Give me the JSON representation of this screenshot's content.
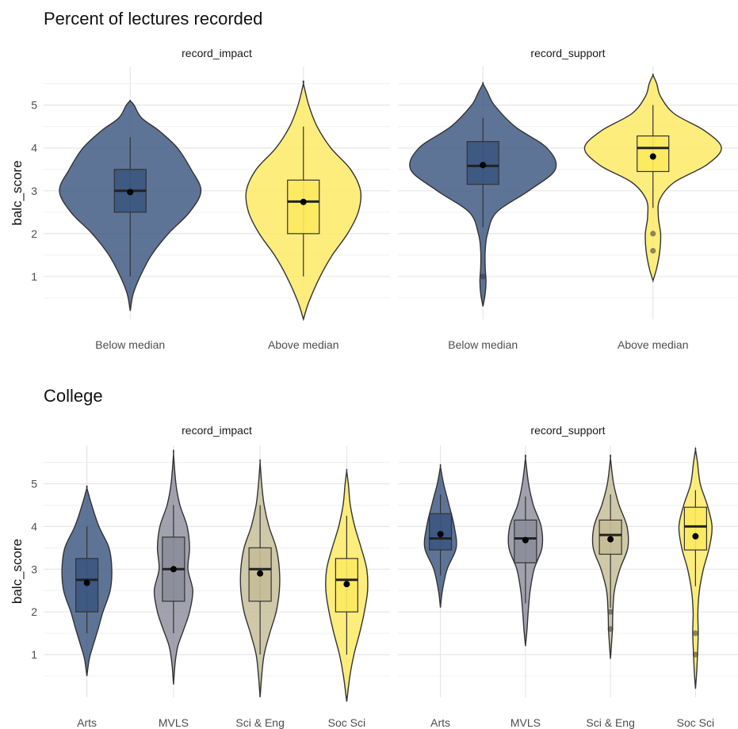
{
  "chart_data": [
    {
      "type": "violin",
      "title": "Percent of lectures recorded",
      "ylabel": "balc_score",
      "xlabel": "",
      "ylim": [
        0.0,
        5.9
      ],
      "yticks": [
        1,
        2,
        3,
        4,
        5
      ],
      "grid": true,
      "legend": "none",
      "colors": [
        "#3b5680",
        "#fde960"
      ],
      "panels": [
        {
          "strip": "record_impact",
          "groups": [
            {
              "name": "Below median",
              "violin": [
                [
                  0.2,
                  0
                ],
                [
                  0.6,
                  4
                ],
                [
                  1.0,
                  13
                ],
                [
                  1.5,
                  28
                ],
                [
                  2.0,
                  50
                ],
                [
                  2.5,
                  78
                ],
                [
                  3.0,
                  93
                ],
                [
                  3.5,
                  80
                ],
                [
                  4.0,
                  62
                ],
                [
                  4.4,
                  38
                ],
                [
                  4.7,
                  15
                ],
                [
                  5.0,
                  5
                ],
                [
                  5.1,
                  0
                ]
              ],
              "box": {
                "q1": 2.5,
                "median": 3.0,
                "q3": 3.5,
                "lower": 1.0,
                "upper": 4.25
              },
              "mean": 2.97,
              "outliers": []
            },
            {
              "name": "Above median",
              "violin": [
                [
                  0.0,
                  0
                ],
                [
                  0.4,
                  7
                ],
                [
                  1.0,
                  22
                ],
                [
                  1.5,
                  38
                ],
                [
                  2.0,
                  58
                ],
                [
                  2.5,
                  72
                ],
                [
                  3.0,
                  75
                ],
                [
                  3.5,
                  62
                ],
                [
                  4.0,
                  36
                ],
                [
                  4.5,
                  18
                ],
                [
                  5.0,
                  7
                ],
                [
                  5.5,
                  0
                ]
              ],
              "box": {
                "q1": 2.0,
                "median": 2.75,
                "q3": 3.25,
                "lower": 1.0,
                "upper": 4.5
              },
              "mean": 2.74,
              "outliers": []
            }
          ]
        },
        {
          "strip": "record_support",
          "groups": [
            {
              "name": "Below median",
              "violin": [
                [
                  0.3,
                  0
                ],
                [
                  0.6,
                  3
                ],
                [
                  0.9,
                  4
                ],
                [
                  1.2,
                  3
                ],
                [
                  1.6,
                  3
                ],
                [
                  2.0,
                  6
                ],
                [
                  2.5,
                  18
                ],
                [
                  3.0,
                  60
                ],
                [
                  3.5,
                  95
                ],
                [
                  4.0,
                  84
                ],
                [
                  4.5,
                  42
                ],
                [
                  5.0,
                  15
                ],
                [
                  5.3,
                  6
                ],
                [
                  5.5,
                  0
                ]
              ],
              "box": {
                "q1": 3.15,
                "median": 3.58,
                "q3": 4.15,
                "lower": 2.15,
                "upper": 4.7
              },
              "mean": 3.6,
              "outliers": [
                1.0
              ]
            },
            {
              "name": "Above median",
              "violin": [
                [
                  0.9,
                  0
                ],
                [
                  1.2,
                  5
                ],
                [
                  1.6,
                  9
                ],
                [
                  2.0,
                  10
                ],
                [
                  2.4,
                  7
                ],
                [
                  2.8,
                  9
                ],
                [
                  3.2,
                  28
                ],
                [
                  3.6,
                  70
                ],
                [
                  4.0,
                  90
                ],
                [
                  4.4,
                  68
                ],
                [
                  4.8,
                  28
                ],
                [
                  5.2,
                  10
                ],
                [
                  5.5,
                  5
                ],
                [
                  5.7,
                  0
                ]
              ],
              "box": {
                "q1": 3.45,
                "median": 4.0,
                "q3": 4.28,
                "lower": 2.6,
                "upper": 5.0
              },
              "mean": 3.8,
              "outliers": [
                2.0,
                1.6
              ]
            }
          ]
        }
      ],
      "categories": [
        "Below median",
        "Above median"
      ]
    },
    {
      "type": "violin",
      "title": "College",
      "ylabel": "balc_score",
      "xlabel": "",
      "ylim": [
        0.0,
        5.9
      ],
      "yticks": [
        1,
        2,
        3,
        4,
        5
      ],
      "grid": true,
      "legend": "none",
      "colors": [
        "#3b5680",
        "#8c8d9b",
        "#c5bd97",
        "#fde960"
      ],
      "panels": [
        {
          "strip": "record_impact",
          "groups": [
            {
              "name": "Arts",
              "violin": [
                [
                  0.5,
                  0
                ],
                [
                  0.9,
                  6
                ],
                [
                  1.2,
                  15
                ],
                [
                  1.6,
                  28
                ],
                [
                  2.0,
                  40
                ],
                [
                  2.5,
                  58
                ],
                [
                  3.0,
                  62
                ],
                [
                  3.5,
                  55
                ],
                [
                  4.0,
                  30
                ],
                [
                  4.5,
                  12
                ],
                [
                  4.9,
                  0
                ]
              ],
              "box": {
                "q1": 2.0,
                "median": 2.75,
                "q3": 3.25,
                "lower": 1.5,
                "upper": 4.0
              },
              "mean": 2.68,
              "outliers": []
            },
            {
              "name": "MVLS",
              "violin": [
                [
                  0.3,
                  0
                ],
                [
                  0.8,
                  4
                ],
                [
                  1.2,
                  11
                ],
                [
                  1.6,
                  26
                ],
                [
                  2.0,
                  40
                ],
                [
                  2.5,
                  48
                ],
                [
                  3.0,
                  36
                ],
                [
                  3.5,
                  40
                ],
                [
                  4.0,
                  34
                ],
                [
                  4.5,
                  16
                ],
                [
                  5.0,
                  6
                ],
                [
                  5.7,
                  0
                ]
              ],
              "box": {
                "q1": 2.25,
                "median": 3.0,
                "q3": 3.75,
                "lower": 1.5,
                "upper": 4.5
              },
              "mean": 3.0,
              "outliers": []
            },
            {
              "name": "Sci & Eng",
              "violin": [
                [
                  0.0,
                  0
                ],
                [
                  0.5,
                  4
                ],
                [
                  1.0,
                  10
                ],
                [
                  1.5,
                  24
                ],
                [
                  2.0,
                  40
                ],
                [
                  2.5,
                  48
                ],
                [
                  3.0,
                  48
                ],
                [
                  3.5,
                  40
                ],
                [
                  4.0,
                  22
                ],
                [
                  4.5,
                  10
                ],
                [
                  5.0,
                  4
                ],
                [
                  5.5,
                  0
                ]
              ],
              "box": {
                "q1": 2.25,
                "median": 3.0,
                "q3": 3.5,
                "lower": 1.0,
                "upper": 4.5
              },
              "mean": 2.9,
              "outliers": []
            },
            {
              "name": "Soc Sci",
              "violin": [
                [
                  -0.1,
                  0
                ],
                [
                  0.5,
                  8
                ],
                [
                  1.0,
                  18
                ],
                [
                  1.5,
                  32
                ],
                [
                  2.0,
                  44
                ],
                [
                  2.5,
                  52
                ],
                [
                  3.0,
                  50
                ],
                [
                  3.5,
                  36
                ],
                [
                  4.0,
                  20
                ],
                [
                  4.5,
                  9
                ],
                [
                  5.0,
                  4
                ],
                [
                  5.3,
                  0
                ]
              ],
              "box": {
                "q1": 2.0,
                "median": 2.75,
                "q3": 3.25,
                "lower": 1.0,
                "upper": 4.25
              },
              "mean": 2.65,
              "outliers": []
            }
          ]
        },
        {
          "strip": "record_support",
          "groups": [
            {
              "name": "Arts",
              "violin": [
                [
                  2.1,
                  0
                ],
                [
                  2.5,
                  5
                ],
                [
                  3.0,
                  17
                ],
                [
                  3.5,
                  40
                ],
                [
                  4.0,
                  35
                ],
                [
                  4.5,
                  22
                ],
                [
                  5.0,
                  8
                ],
                [
                  5.4,
                  0
                ]
              ],
              "box": {
                "q1": 3.45,
                "median": 3.72,
                "q3": 4.3,
                "lower": 2.85,
                "upper": 4.75
              },
              "mean": 3.82,
              "outliers": []
            },
            {
              "name": "MVLS",
              "violin": [
                [
                  1.2,
                  0
                ],
                [
                  1.6,
                  4
                ],
                [
                  2.0,
                  7
                ],
                [
                  2.5,
                  12
                ],
                [
                  3.0,
                  22
                ],
                [
                  3.5,
                  42
                ],
                [
                  4.0,
                  40
                ],
                [
                  4.5,
                  20
                ],
                [
                  5.0,
                  8
                ],
                [
                  5.6,
                  0
                ]
              ],
              "box": {
                "q1": 3.15,
                "median": 3.72,
                "q3": 4.15,
                "lower": 2.2,
                "upper": 4.7
              },
              "mean": 3.68,
              "outliers": []
            },
            {
              "name": "Sci & Eng",
              "violin": [
                [
                  0.9,
                  0
                ],
                [
                  1.3,
                  3
                ],
                [
                  1.6,
                  5
                ],
                [
                  2.0,
                  6
                ],
                [
                  2.5,
                  10
                ],
                [
                  3.0,
                  24
                ],
                [
                  3.5,
                  44
                ],
                [
                  4.0,
                  42
                ],
                [
                  4.5,
                  22
                ],
                [
                  5.0,
                  8
                ],
                [
                  5.6,
                  0
                ]
              ],
              "box": {
                "q1": 3.35,
                "median": 3.8,
                "q3": 4.15,
                "lower": 2.1,
                "upper": 4.75
              },
              "mean": 3.7,
              "outliers": [
                2.0,
                1.6
              ]
            },
            {
              "name": "Soc Sci",
              "violin": [
                [
                  0.2,
                  0
                ],
                [
                  0.6,
                  3
                ],
                [
                  1.0,
                  5
                ],
                [
                  1.5,
                  7
                ],
                [
                  2.0,
                  6
                ],
                [
                  2.5,
                  10
                ],
                [
                  3.0,
                  20
                ],
                [
                  3.5,
                  35
                ],
                [
                  4.0,
                  42
                ],
                [
                  4.5,
                  30
                ],
                [
                  5.0,
                  12
                ],
                [
                  5.5,
                  5
                ],
                [
                  5.8,
                  0
                ]
              ],
              "box": {
                "q1": 3.45,
                "median": 4.0,
                "q3": 4.45,
                "lower": 2.6,
                "upper": 4.85
              },
              "mean": 3.77,
              "outliers": [
                1.5,
                1.0
              ]
            }
          ]
        }
      ],
      "categories": [
        "Arts",
        "MVLS",
        "Sci & Eng",
        "Soc Sci"
      ]
    }
  ]
}
